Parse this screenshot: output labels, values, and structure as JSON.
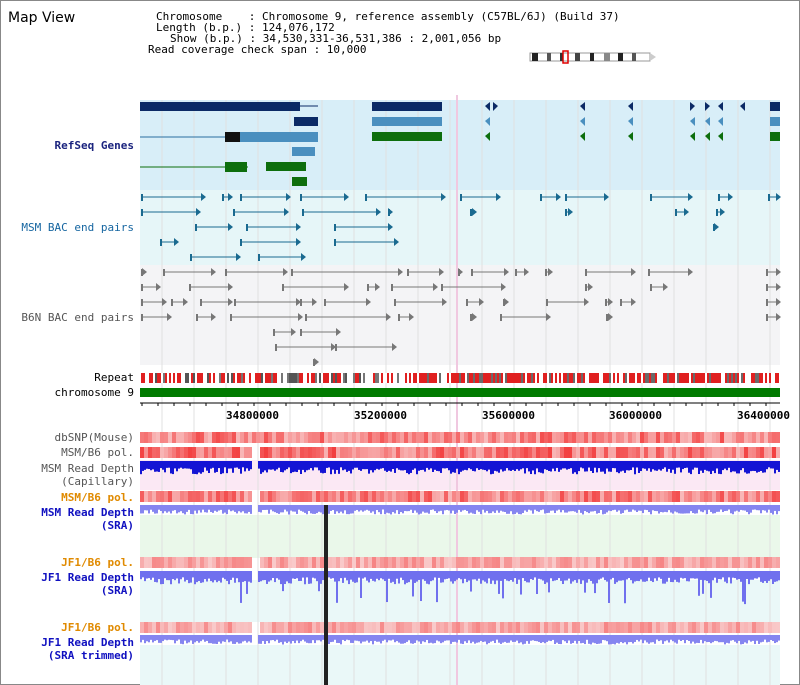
{
  "window": {
    "title": "Map View"
  },
  "info": {
    "chromosome": "Chromosome    : Chromosome 9, reference assembly (C57BL/6J) (Build 37)",
    "length": "Length (b.p.) : 124,076,172",
    "show": "Show (b.p.) : 34,530,331-36,531,386 : 2,001,056 bp",
    "read_coverage": "Read coverage check span : 10,000"
  },
  "tracks": {
    "refseq": "RefSeq Genes",
    "msm_bac": "MSM BAC end pairs",
    "b6n_bac": "B6N BAC end pairs",
    "repeat": "Repeat",
    "chromosome": "chromosome 9",
    "dbsnp": "dbSNP(Mouse)",
    "msm_b6_pol_1": "MSM/B6 pol.",
    "msm_read_depth_cap_1": "MSM Read Depth",
    "msm_read_depth_cap_2": "(Capillary)",
    "msm_b6_pol_2": "MSM/B6 pol.",
    "msm_read_depth_sra_1": "MSM Read Depth",
    "msm_read_depth_sra_2": "(SRA)",
    "jf1_b6_pol_1": "JF1/B6 pol.",
    "jf1_read_depth_sra_1": "JF1 Read Depth",
    "jf1_read_depth_sra_2": "(SRA)",
    "jf1_b6_pol_2": "JF1/B6 pol.",
    "jf1_read_depth_trim_1": "JF1 Read Depth",
    "jf1_read_depth_trim_2": "(SRA trimmed)"
  },
  "axis": {
    "ticks": [
      "34800000",
      "35200000",
      "35600000",
      "36000000",
      "36400000"
    ]
  },
  "colors": {
    "refseq_bg": "#d8eef8",
    "msm_bg": "#e6f6f8",
    "b6n_bg": "#f4f4f6",
    "navy": "#0b2a66",
    "teal_gene": "#4a8fbf",
    "green_gene": "#0d6e0d",
    "chromosome_bar": "#007a00",
    "depth_blue": "#1414d4",
    "depth_light": "#8585f0"
  }
}
